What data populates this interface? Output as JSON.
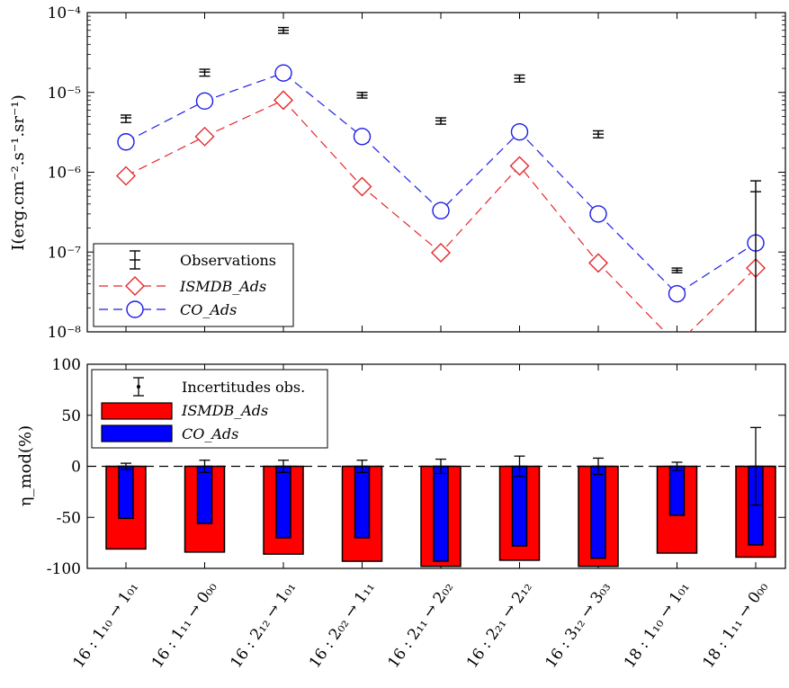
{
  "chart_data": [
    {
      "type": "line",
      "scale": "log",
      "ylabel": "I(erg.cm⁻².s⁻¹.sr⁻¹)",
      "ylim": [
        1e-08,
        0.0001
      ],
      "yticks": [
        "10⁻⁸",
        "10⁻⁷",
        "10⁻⁶",
        "10⁻⁵",
        "10⁻⁴"
      ],
      "categories": [
        "16 : 1₁₀ → 1₀₁",
        "16 : 1₁₁ → 0₀₀",
        "16 : 2₁₂ → 1₀₁",
        "16 : 2₀₂ → 1₁₁",
        "16 : 2₁₁ → 2₀₂",
        "16 : 2₂₁ → 2₁₂",
        "16 : 3₁₂ → 3₀₃",
        "18 : 1₁₀ → 1₀₁",
        "18 : 1₁₁ → 0₀₀"
      ],
      "legend_position": "bottom-left",
      "series": [
        {
          "name": "Observations",
          "style": "errorbar",
          "color": "#000000",
          "values": [
            4.8e-06,
            1.8e-05,
            6e-05,
            9.2e-06,
            4.4e-06,
            1.5e-05,
            3e-06,
            5.9e-08,
            5.7e-07
          ],
          "err_low": [
            4.2e-06,
            1.6e-05,
            5.5e-05,
            8.5e-06,
            4e-06,
            1.35e-05,
            2.7e-06,
            5.5e-08,
            1e-08
          ],
          "err_high": [
            5.2e-06,
            1.95e-05,
            6.5e-05,
            1e-05,
            4.8e-06,
            1.65e-05,
            3.3e-06,
            6.3e-08,
            7.8e-07
          ]
        },
        {
          "name": "ISMDB_Ads",
          "style": "dashed-diamond",
          "color": "#e8262a",
          "values": [
            9e-07,
            2.8e-06,
            8e-06,
            6.6e-07,
            9.8e-08,
            1.2e-06,
            7.3e-08,
            7e-09,
            6.3e-08
          ]
        },
        {
          "name": "CO_Ads",
          "style": "dashed-circle",
          "color": "#1c1ce6",
          "values": [
            2.4e-06,
            7.8e-06,
            1.75e-05,
            2.8e-06,
            3.3e-07,
            3.2e-06,
            3e-07,
            3e-08,
            1.3e-07
          ]
        }
      ]
    },
    {
      "type": "bar",
      "ylabel": "η_mod(%)",
      "ylim": [
        -100,
        100
      ],
      "yticks": [
        "100",
        "50",
        "0",
        "-50",
        "-100"
      ],
      "categories": [
        "16 : 1₁₀ → 1₀₁",
        "16 : 1₁₁ → 0₀₀",
        "16 : 2₁₂ → 1₀₁",
        "16 : 2₀₂ → 1₁₁",
        "16 : 2₁₁ → 2₀₂",
        "16 : 2₂₁ → 2₁₂",
        "16 : 3₁₂ → 3₀₃",
        "18 : 1₁₀ → 1₀₁",
        "18 : 1₁₁ → 0₀₀"
      ],
      "legend_position": "top-left",
      "series": [
        {
          "name": "Incertitudes obs.",
          "style": "errorbar",
          "color": "#000000",
          "values": [
            3,
            6,
            6,
            6,
            7,
            10,
            8,
            4,
            38
          ]
        },
        {
          "name": "ISMDB_Ads",
          "color": "#ff0000",
          "values": [
            -81,
            -84,
            -86,
            -93,
            -98,
            -92,
            -98,
            -85,
            -89
          ]
        },
        {
          "name": "CO_Ads",
          "color": "#0000ff",
          "values": [
            -51,
            -56,
            -70,
            -70,
            -93,
            -78,
            -90,
            -48,
            -77
          ]
        }
      ]
    }
  ]
}
